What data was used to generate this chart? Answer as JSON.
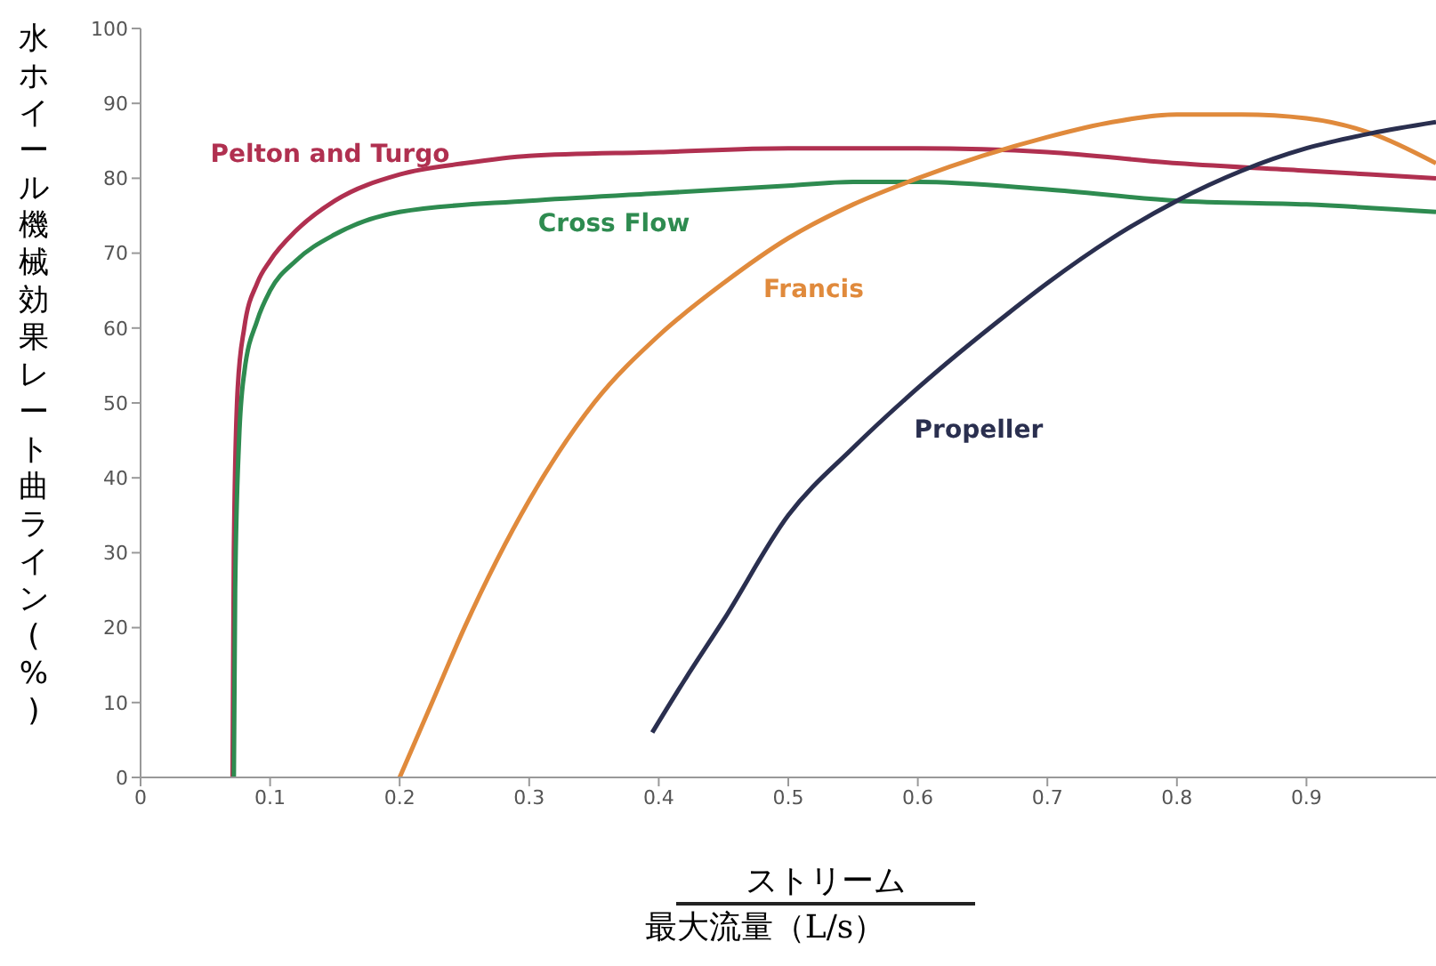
{
  "chart_data": {
    "type": "line",
    "xlabel": "最大流量（L/s）",
    "annotations": [
      "ストリーム"
    ],
    "ylabel": "水ホイール機械効果レート曲ライン(%)",
    "xlim": [
      0,
      1
    ],
    "xticks": [
      0,
      0.1,
      0.2,
      0.3,
      0.4,
      0.5,
      0.6,
      0.7,
      0.8,
      0.9
    ],
    "ylim": [
      0,
      100
    ],
    "yticks": [
      0,
      10,
      20,
      30,
      40,
      50,
      60,
      70,
      80,
      90,
      100
    ],
    "grid": false,
    "legend": false,
    "marker": "none",
    "line_style": "solid",
    "series": [
      {
        "name": "Pelton and Turgo",
        "color": "#b03050",
        "x": [
          0.071,
          0.072,
          0.075,
          0.08,
          0.09,
          0.1,
          0.12,
          0.15,
          0.2,
          0.25,
          0.3,
          0.4,
          0.5,
          0.6,
          0.7,
          0.8,
          0.9,
          1.0
        ],
        "values": [
          0,
          30,
          52,
          60,
          66,
          69,
          73,
          77,
          80.5,
          82,
          83,
          83.5,
          84,
          84,
          83.5,
          82,
          81,
          80
        ]
      },
      {
        "name": "Cross Flow",
        "color": "#2e8b50",
        "x": [
          0.072,
          0.073,
          0.076,
          0.08,
          0.09,
          0.1,
          0.12,
          0.15,
          0.2,
          0.3,
          0.4,
          0.5,
          0.55,
          0.6,
          0.7,
          0.8,
          0.9,
          1.0
        ],
        "values": [
          0,
          25,
          45,
          54,
          61,
          65,
          69,
          72.5,
          75.5,
          77,
          78,
          79,
          79.5,
          79.5,
          78.5,
          77,
          76.5,
          75.5
        ]
      },
      {
        "name": "Francis",
        "color": "#e08a3c",
        "x": [
          0.2,
          0.225,
          0.25,
          0.3,
          0.35,
          0.4,
          0.45,
          0.5,
          0.55,
          0.6,
          0.65,
          0.7,
          0.75,
          0.8,
          0.85,
          0.9,
          0.95,
          1.0
        ],
        "values": [
          0,
          10,
          20,
          37,
          50,
          59,
          66,
          72,
          76.5,
          80,
          83,
          85.5,
          87.5,
          88.5,
          88.5,
          88,
          86,
          82
        ]
      },
      {
        "name": "Propeller",
        "color": "#2a2f4f",
        "x": [
          0.395,
          0.42,
          0.45,
          0.5,
          0.55,
          0.6,
          0.67,
          0.7,
          0.75,
          0.8,
          0.85,
          0.9,
          0.95,
          1.0
        ],
        "values": [
          6,
          13,
          21,
          35,
          44,
          52,
          62,
          66,
          72,
          77,
          81,
          84,
          86,
          87.5
        ]
      }
    ]
  }
}
